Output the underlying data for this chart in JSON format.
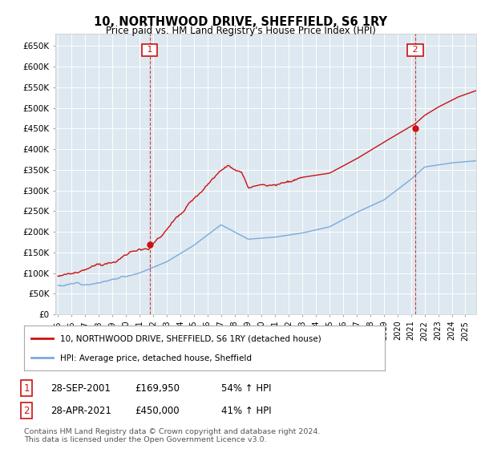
{
  "title": "10, NORTHWOOD DRIVE, SHEFFIELD, S6 1RY",
  "subtitle": "Price paid vs. HM Land Registry's House Price Index (HPI)",
  "ylim": [
    0,
    680000
  ],
  "yticks": [
    0,
    50000,
    100000,
    150000,
    200000,
    250000,
    300000,
    350000,
    400000,
    450000,
    500000,
    550000,
    600000,
    650000
  ],
  "ytick_labels": [
    "£0",
    "£50K",
    "£100K",
    "£150K",
    "£200K",
    "£250K",
    "£300K",
    "£350K",
    "£400K",
    "£450K",
    "£500K",
    "£550K",
    "£600K",
    "£650K"
  ],
  "xlim_start": 1994.8,
  "xlim_end": 2025.8,
  "background_color": "#ffffff",
  "plot_bg_color": "#dde8f0",
  "grid_color": "#ffffff",
  "sale1_x": 2001.75,
  "sale1_y": 169950,
  "sale1_date": "28-SEP-2001",
  "sale1_price": "£169,950",
  "sale1_hpi": "54% ↑ HPI",
  "sale2_x": 2021.32,
  "sale2_y": 450000,
  "sale2_date": "28-APR-2021",
  "sale2_price": "£450,000",
  "sale2_hpi": "41% ↑ HPI",
  "line_property_color": "#cc1111",
  "line_hpi_color": "#7aaadd",
  "legend_property_label": "10, NORTHWOOD DRIVE, SHEFFIELD, S6 1RY (detached house)",
  "legend_hpi_label": "HPI: Average price, detached house, Sheffield",
  "footnote": "Contains HM Land Registry data © Crown copyright and database right 2024.\nThis data is licensed under the Open Government Licence v3.0.",
  "marker_color": "#cc1111",
  "dashed_line_color": "#cc1111",
  "label_border_color": "#cc1111"
}
